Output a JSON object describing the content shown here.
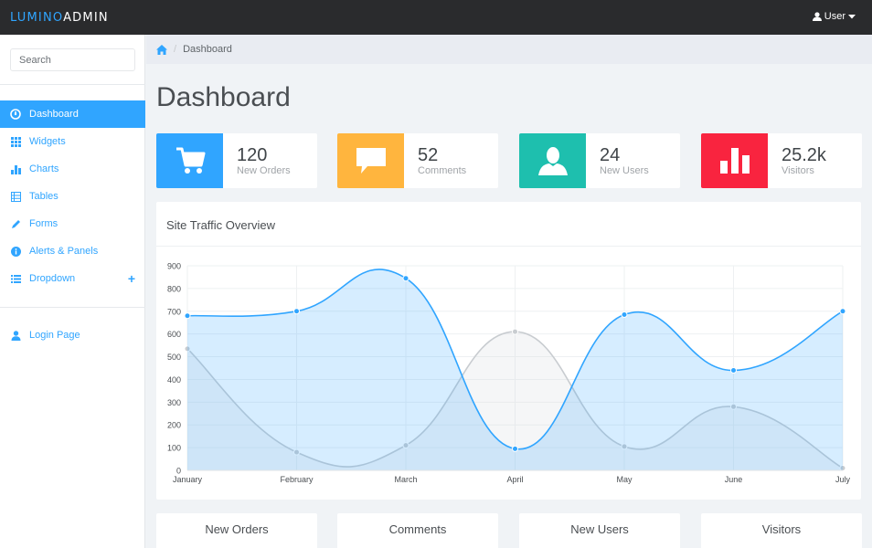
{
  "app": {
    "brand_part1": "LUMINO",
    "brand_part2": "ADMIN",
    "user_label": "User"
  },
  "sidebar": {
    "search_placeholder": "Search",
    "items": [
      {
        "label": "Dashboard",
        "icon": "dashboard-icon",
        "active": true
      },
      {
        "label": "Widgets",
        "icon": "grid-icon"
      },
      {
        "label": "Charts",
        "icon": "bar-chart-icon"
      },
      {
        "label": "Tables",
        "icon": "table-icon"
      },
      {
        "label": "Forms",
        "icon": "pencil-icon"
      },
      {
        "label": "Alerts & Panels",
        "icon": "info-icon"
      },
      {
        "label": "Dropdown",
        "icon": "list-icon",
        "has_plus": true
      }
    ],
    "login_label": "Login Page"
  },
  "breadcrumb": {
    "current": "Dashboard"
  },
  "page": {
    "title": "Dashboard"
  },
  "stats": [
    {
      "value": "120",
      "label": "New Orders",
      "color": "#30a5ff",
      "icon": "cart-icon"
    },
    {
      "value": "52",
      "label": "Comments",
      "color": "#ffb53e",
      "icon": "comment-icon"
    },
    {
      "value": "24",
      "label": "New Users",
      "color": "#1ebfae",
      "icon": "user-icon"
    },
    {
      "value": "25.2k",
      "label": "Visitors",
      "color": "#f9243f",
      "icon": "bars-icon"
    }
  ],
  "panel": {
    "title": "Site Traffic Overview"
  },
  "chart_data": {
    "type": "area",
    "categories": [
      "January",
      "February",
      "March",
      "April",
      "May",
      "June",
      "July"
    ],
    "ylim": [
      0,
      900
    ],
    "yticks": [
      0,
      100,
      200,
      300,
      400,
      500,
      600,
      700,
      800,
      900
    ],
    "grid": true,
    "series": [
      {
        "values": [
          535,
          80,
          110,
          610,
          105,
          280,
          10
        ],
        "color": "#c8ccd0"
      },
      {
        "values": [
          680,
          700,
          845,
          95,
          685,
          440,
          700
        ],
        "color": "#30a5ff"
      }
    ]
  },
  "bottom_panels": [
    "New Orders",
    "Comments",
    "New Users",
    "Visitors"
  ]
}
